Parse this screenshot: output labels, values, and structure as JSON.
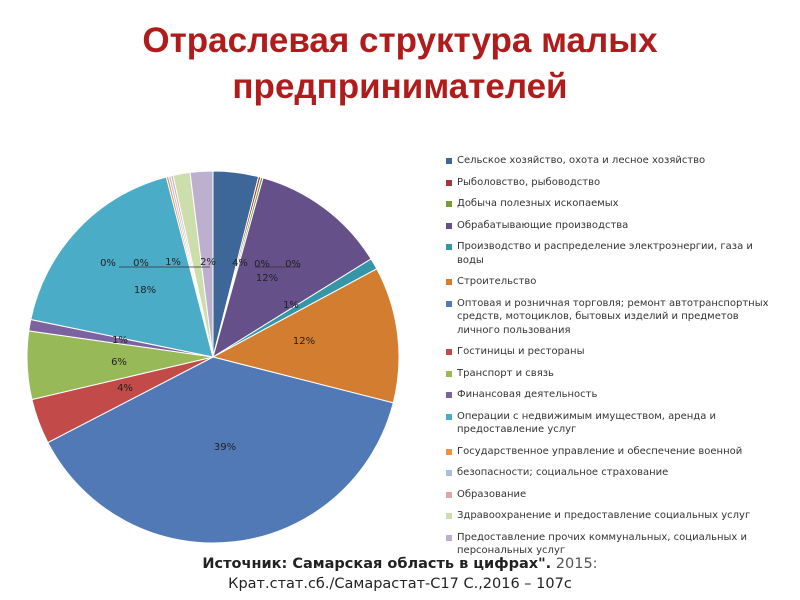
{
  "title": {
    "line1": "Отраслевая структура малых",
    "line2": "предпринимателей"
  },
  "chart_data": {
    "type": "pie",
    "slices": [
      {
        "label": "Сельское хозяйство, охота и лесное хозяйство",
        "value": 4,
        "value_label": "4%",
        "color": "#3d6699"
      },
      {
        "label": "Рыболовство, рыбоводство",
        "value": 0.2,
        "value_label": "0%",
        "color": "#a03a3a"
      },
      {
        "label": "Добыча полезных ископаемых",
        "value": 0.2,
        "value_label": "0%",
        "color": "#7b9a38"
      },
      {
        "label": "Обрабатывающие производства",
        "value": 12,
        "value_label": "12%",
        "color": "#66508a"
      },
      {
        "label": "Производство и распределение электроэнергии, газа и воды",
        "value": 1,
        "value_label": "1%",
        "color": "#3596a8"
      },
      {
        "label": "Строительство",
        "value": 12,
        "value_label": "12%",
        "color": "#d37d30"
      },
      {
        "label": "Оптовая и розничная торговля; ремонт автотранспортных средств, мотоциклов, бытовых изделий и предметов личного пользования",
        "value": 39,
        "value_label": "39%",
        "color": "#5079b6"
      },
      {
        "label": "Гостиницы и рестораны",
        "value": 4,
        "value_label": "4%",
        "color": "#c24b49"
      },
      {
        "label": "Транспорт и связь",
        "value": 6,
        "value_label": "6%",
        "color": "#98b957"
      },
      {
        "label": "Финансовая деятельность",
        "value": 1,
        "value_label": "1%",
        "color": "#7c62a0"
      },
      {
        "label": "Операции с недвижимым имуществом, аренда и предоставление услуг",
        "value": 18,
        "value_label": "18%",
        "color": "#4aacc6"
      },
      {
        "label": "Государственное управление и обеспечение военной",
        "value": 0.2,
        "value_label": "0%",
        "color": "#ee9143"
      },
      {
        "label": "безопасности; социальное страхование",
        "value": 0.2,
        "value_label": "0%",
        "color": "#a6bfe0"
      },
      {
        "label": "Образование",
        "value": 0.2,
        "value_label": "",
        "color": "#dea6a4"
      },
      {
        "label": "Здравоохранение и предоставление социальных услуг",
        "value": 1.5,
        "value_label": "1%",
        "color": "#cbdeab"
      },
      {
        "label": "Предоставление прочих коммунальных, социальных и персональных услуг",
        "value": 2,
        "value_label": "2%",
        "color": "#bdb0cf"
      }
    ],
    "legend_position": "right"
  },
  "source": {
    "label": "Источник: Самарская область в цифрах\".",
    "year": "2015:",
    "line2": "Крат.стат.сб./Самарастат-С17 С.,2016 – 107с"
  }
}
